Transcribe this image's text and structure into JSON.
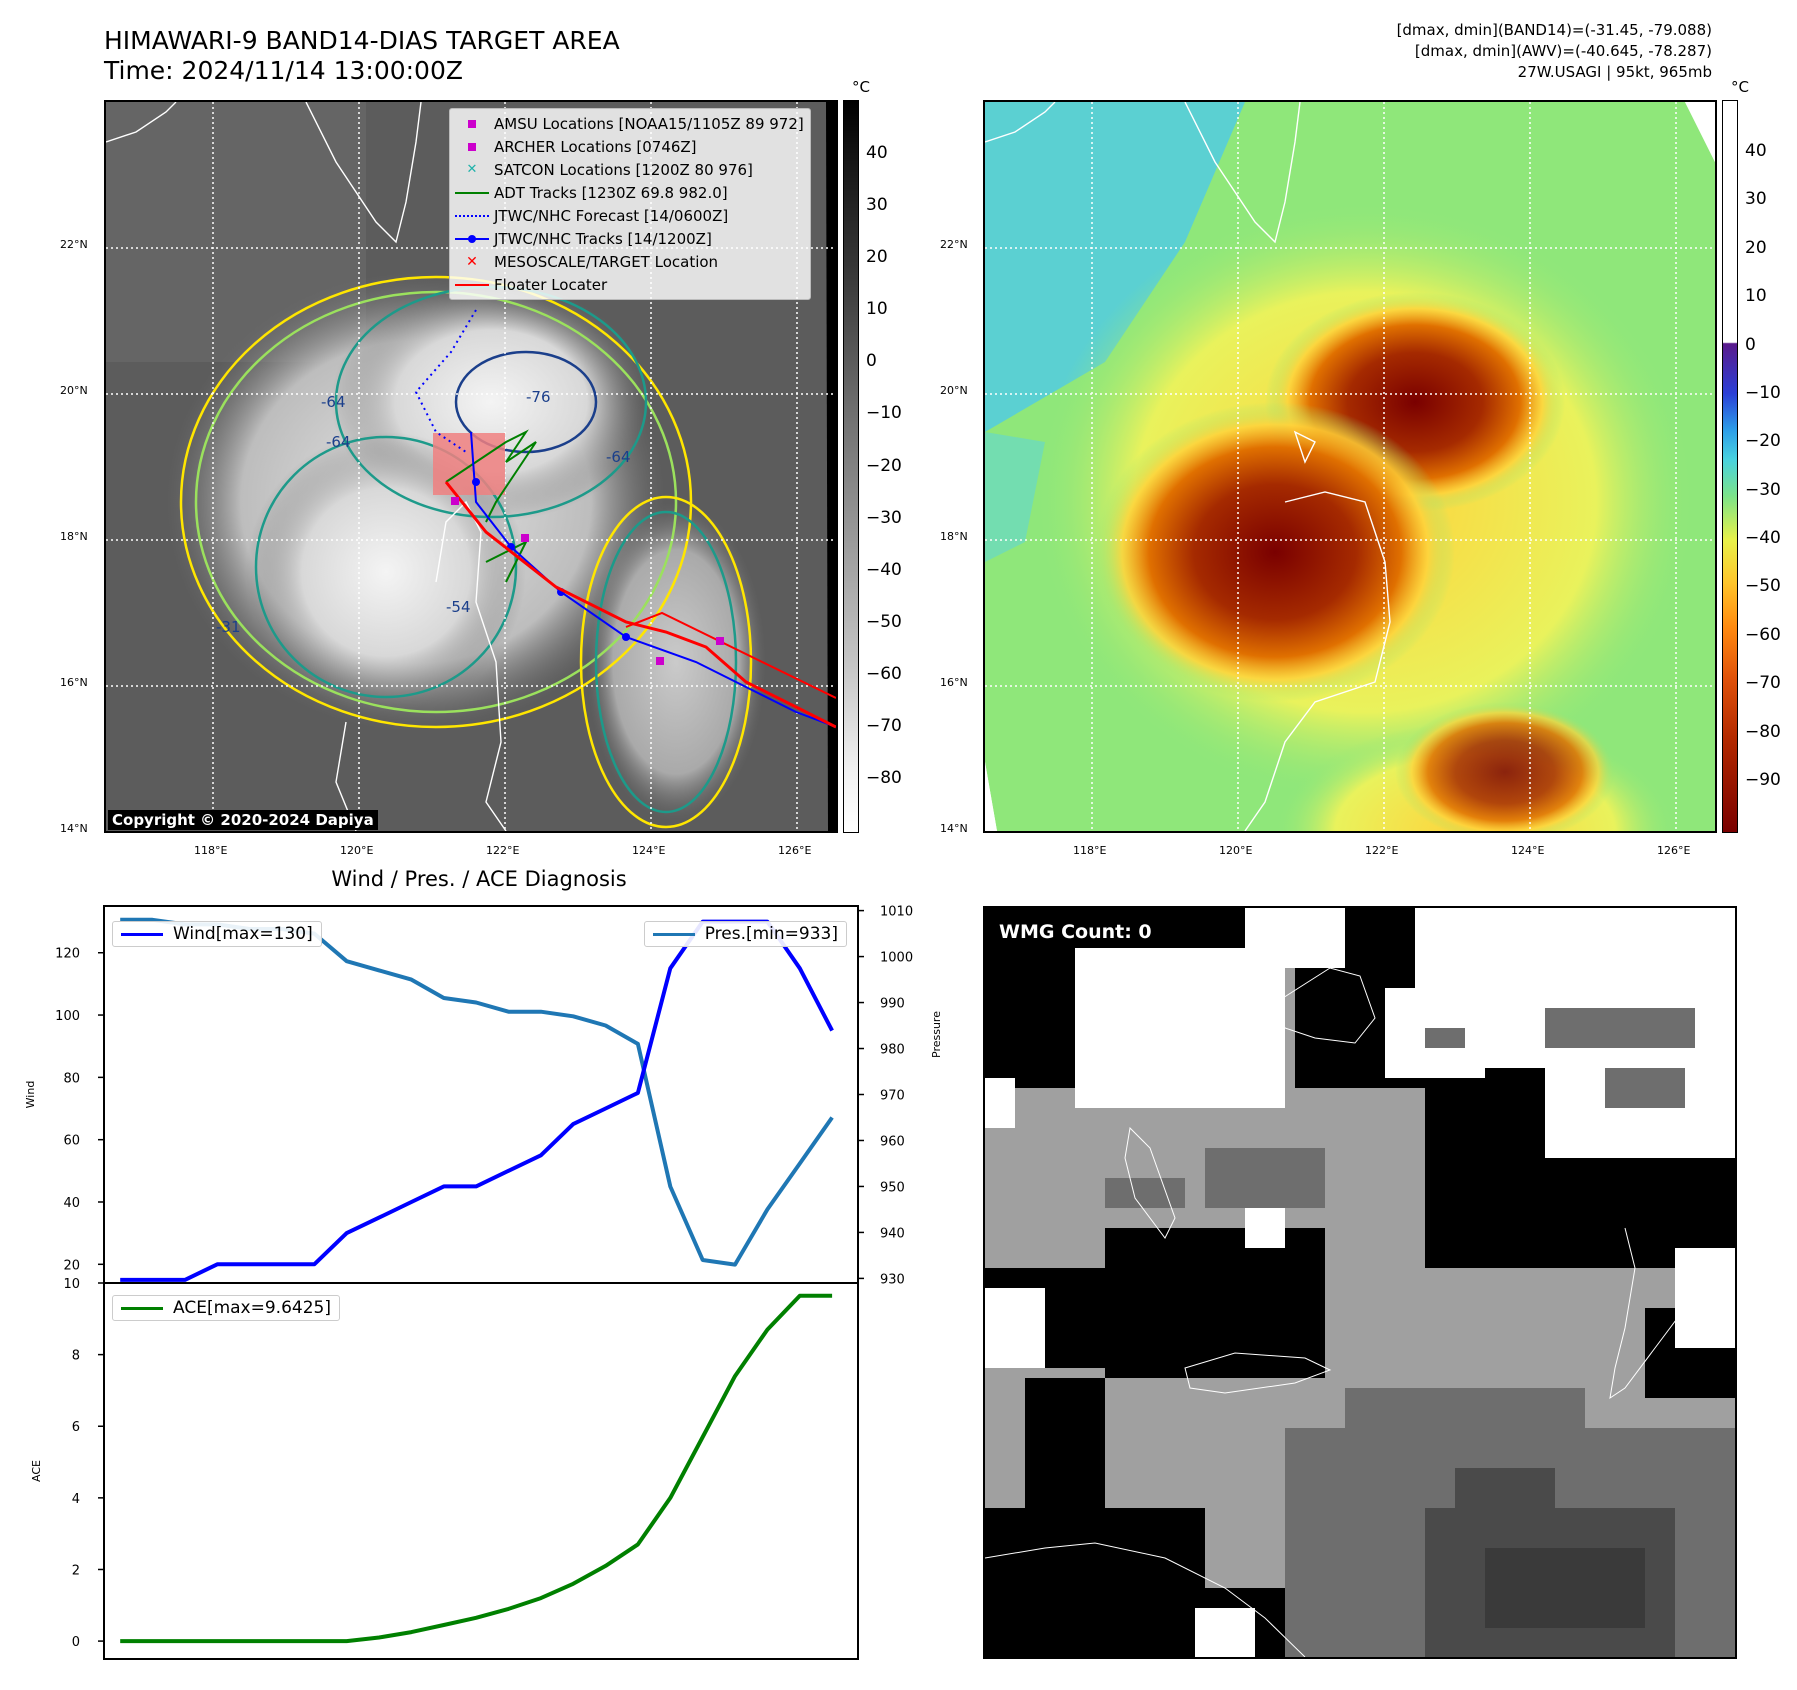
{
  "header": {
    "title_line1": "HIMAWARI-9 BAND14-DIAS TARGET AREA",
    "title_line2": "Time: 2024/11/14 13:00:00Z",
    "info_line1": "[dmax, dmin](BAND14)=(-31.45, -79.088)",
    "info_line2": "[dmax, dmin](AWV)=(-40.645, -78.287)",
    "info_line3": "27W.USAGI | 95kt, 965mb"
  },
  "map_axes": {
    "lat_labels": [
      "22°N",
      "20°N",
      "18°N",
      "16°N",
      "14°N"
    ],
    "lon_labels": [
      "118°E",
      "120°E",
      "122°E",
      "124°E",
      "126°E"
    ]
  },
  "ir_panel": {
    "legend": [
      {
        "label": "AMSU Locations [NOAA15/1105Z 89 972]",
        "icon": "magenta-square",
        "color": "#cc00cc"
      },
      {
        "label": "ARCHER Locations [0746Z]",
        "icon": "magenta-square",
        "color": "#cc00cc"
      },
      {
        "label": "SATCON Locations [1200Z 80 976]",
        "icon": "cyan-x",
        "color": "#20b2aa"
      },
      {
        "label": "ADT Tracks [1230Z 69.8 982.0]",
        "icon": "green-line",
        "color": "#008000"
      },
      {
        "label": "JTWC/NHC Forecast [14/0600Z]",
        "icon": "blue-dotted-line",
        "color": "#0000ff"
      },
      {
        "label": "JTWC/NHC Tracks [14/1200Z]",
        "icon": "blue-line-dot",
        "color": "#0000ff"
      },
      {
        "label": "MESOSCALE/TARGET Location",
        "icon": "red-x",
        "color": "#ff0000"
      },
      {
        "label": "Floater Locater",
        "icon": "red-line",
        "color": "#ff0000"
      }
    ],
    "copyright": "Copyright © 2020-2024 Dapiya",
    "contour_labels": [
      "-64",
      "-76",
      "-64",
      "-54",
      "-31",
      "-64"
    ]
  },
  "ir_colorbar": {
    "unit": "°C",
    "ticks": [
      "40",
      "30",
      "20",
      "10",
      "0",
      "−10",
      "−20",
      "−30",
      "−40",
      "−50",
      "−60",
      "−70",
      "−80"
    ]
  },
  "dias_colorbar": {
    "unit": "°C",
    "ticks": [
      "40",
      "30",
      "20",
      "10",
      "0",
      "−10",
      "−20",
      "−30",
      "−40",
      "−50",
      "−60",
      "−70",
      "−80",
      "−90"
    ]
  },
  "wmg_panel": {
    "label": "WMG Count: 0"
  },
  "chart_data": [
    {
      "type": "line",
      "title": "Wind / Pres. / ACE Diagnosis",
      "ylabel": "Wind",
      "y2label": "Pressure",
      "ylim": [
        14,
        135
      ],
      "y2lim": [
        929,
        1011
      ],
      "yticks": [
        20,
        40,
        60,
        80,
        100,
        120
      ],
      "y2ticks": [
        930,
        940,
        950,
        960,
        970,
        980,
        990,
        1000,
        1010
      ],
      "x": [
        0,
        1,
        2,
        3,
        4,
        5,
        6,
        7,
        8,
        9,
        10,
        11,
        12,
        13,
        14,
        15,
        16,
        17,
        18,
        19,
        20,
        21,
        22
      ],
      "series": [
        {
          "name": "Wind[max=130]",
          "axis": "left",
          "color": "#0000ff",
          "values": [
            15,
            15,
            15,
            20,
            20,
            20,
            20,
            30,
            35,
            40,
            45,
            45,
            50,
            55,
            65,
            70,
            75,
            115,
            130,
            130,
            130,
            115,
            95
          ]
        },
        {
          "name": "Pres.[min=933]",
          "axis": "right",
          "color": "#1f77b4",
          "values": [
            1008,
            1008,
            1007,
            1007,
            1006,
            1006,
            1005,
            999,
            997,
            995,
            991,
            990,
            988,
            988,
            987,
            985,
            981,
            950,
            934,
            933,
            945,
            955,
            965
          ]
        }
      ]
    },
    {
      "type": "line",
      "ylabel": "ACE",
      "ylim": [
        -0.5,
        10
      ],
      "yticks": [
        0,
        2,
        4,
        6,
        8,
        10
      ],
      "x": [
        0,
        1,
        2,
        3,
        4,
        5,
        6,
        7,
        8,
        9,
        10,
        11,
        12,
        13,
        14,
        15,
        16,
        17,
        18,
        19,
        20,
        21,
        22
      ],
      "series": [
        {
          "name": "ACE[max=9.6425]",
          "color": "#008000",
          "values": [
            0,
            0,
            0,
            0,
            0,
            0,
            0,
            0,
            0.1,
            0.25,
            0.45,
            0.65,
            0.9,
            1.2,
            1.6,
            2.1,
            2.7,
            4.0,
            5.7,
            7.4,
            8.7,
            9.6425,
            9.6425
          ]
        }
      ]
    }
  ]
}
